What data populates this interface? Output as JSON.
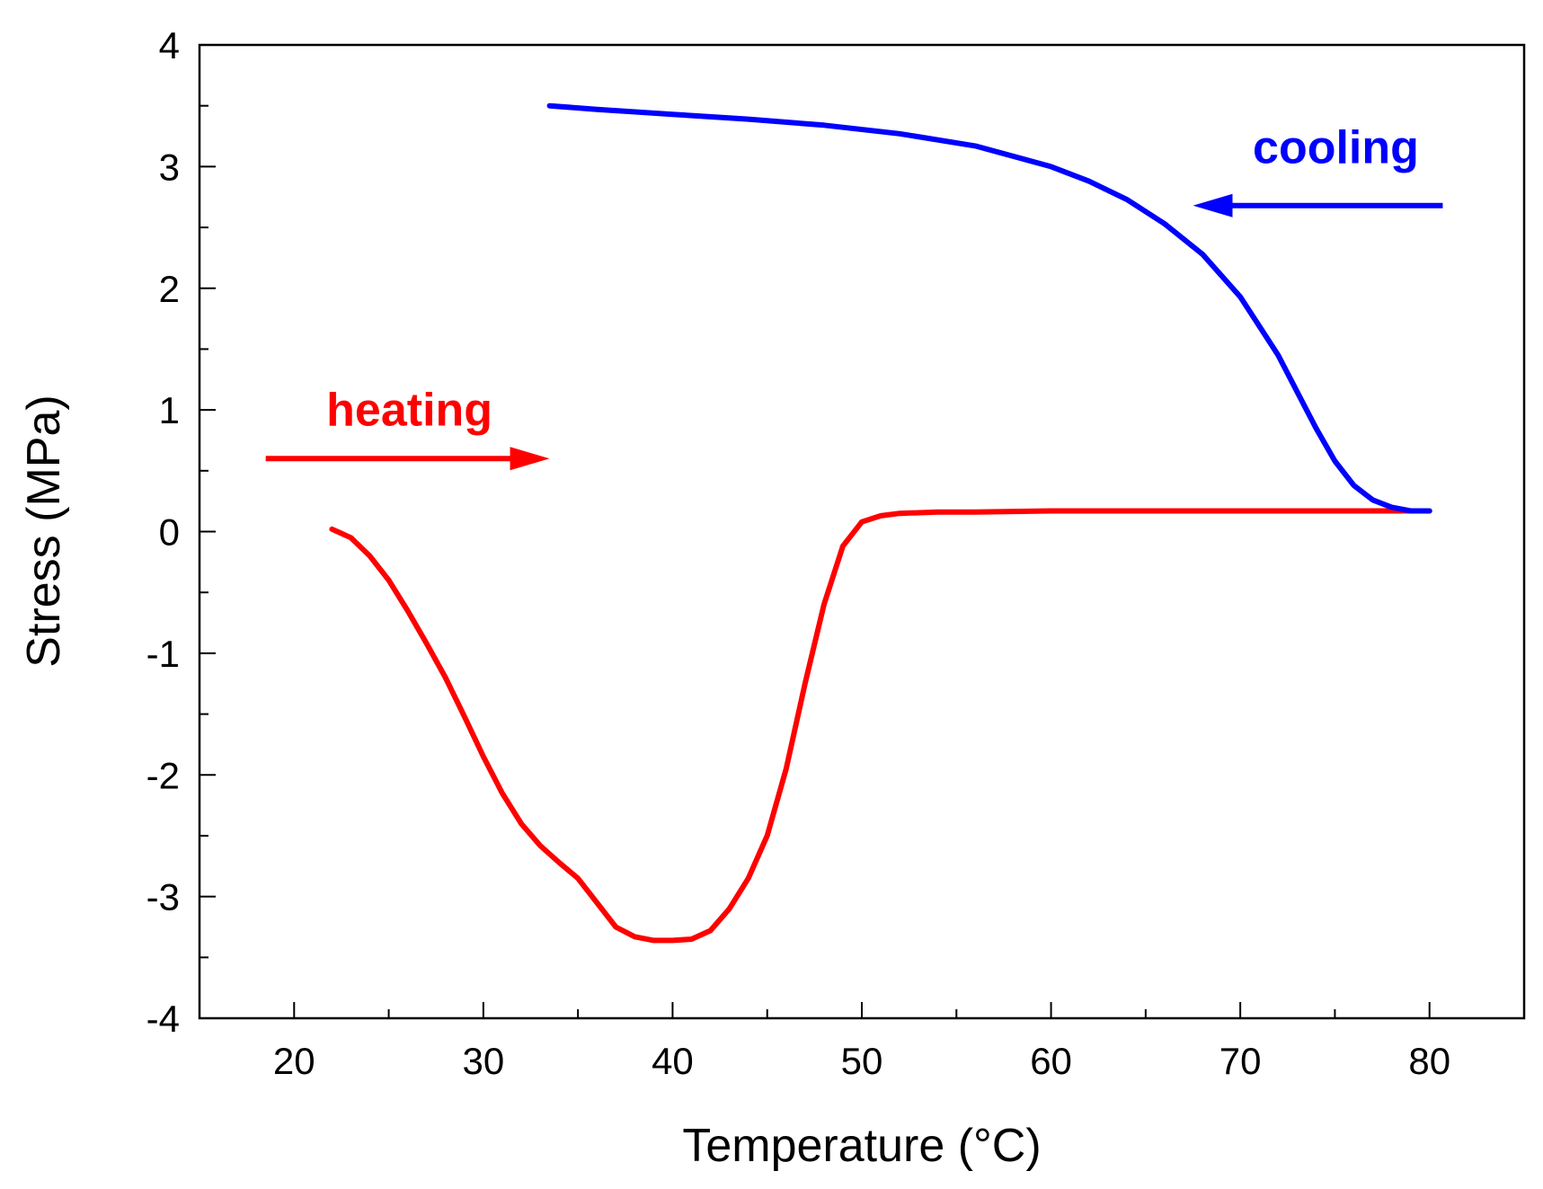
{
  "chart_data": {
    "type": "line",
    "title": "",
    "xlabel": "Temperature (°C)",
    "ylabel": "Stress (MPa)",
    "xlim": [
      15,
      85
    ],
    "ylim": [
      -4,
      4
    ],
    "x_ticks": [
      20,
      30,
      40,
      50,
      60,
      70,
      80
    ],
    "y_ticks": [
      -4,
      -3,
      -2,
      -1,
      0,
      1,
      2,
      3,
      4
    ],
    "grid": false,
    "series": [
      {
        "name": "heating",
        "color": "#ff0000",
        "x": [
          22.0,
          23.0,
          24.0,
          25.0,
          26.0,
          27.0,
          28.0,
          29.0,
          30.0,
          31.0,
          32.0,
          33.0,
          34.0,
          35.0,
          36.0,
          37.0,
          38.0,
          39.0,
          40.0,
          41.0,
          42.0,
          43.0,
          44.0,
          45.0,
          46.0,
          47.0,
          48.0,
          49.0,
          50.0,
          51.0,
          52.0,
          54.0,
          56.0,
          60.0,
          64.0,
          68.0,
          72.0,
          76.0,
          80.0
        ],
        "y": [
          0.02,
          -0.05,
          -0.2,
          -0.4,
          -0.65,
          -0.92,
          -1.2,
          -1.52,
          -1.85,
          -2.15,
          -2.4,
          -2.58,
          -2.72,
          -2.85,
          -3.05,
          -3.25,
          -3.33,
          -3.36,
          -3.36,
          -3.35,
          -3.28,
          -3.1,
          -2.85,
          -2.5,
          -1.95,
          -1.25,
          -0.6,
          -0.12,
          0.08,
          0.13,
          0.15,
          0.16,
          0.16,
          0.17,
          0.17,
          0.17,
          0.17,
          0.17,
          0.17
        ]
      },
      {
        "name": "cooling",
        "color": "#0000ff",
        "x": [
          33.5,
          36.0,
          40.0,
          44.0,
          48.0,
          52.0,
          56.0,
          60.0,
          62.0,
          64.0,
          66.0,
          68.0,
          70.0,
          72.0,
          73.0,
          74.0,
          75.0,
          76.0,
          77.0,
          78.0,
          79.0,
          80.0
        ],
        "y": [
          3.5,
          3.47,
          3.43,
          3.39,
          3.34,
          3.27,
          3.17,
          3.0,
          2.88,
          2.73,
          2.53,
          2.28,
          1.93,
          1.45,
          1.15,
          0.85,
          0.58,
          0.38,
          0.26,
          0.2,
          0.17,
          0.17
        ]
      }
    ],
    "annotations": [
      {
        "text": "heating",
        "color": "#ff0000",
        "arrow_direction": "right",
        "arrow_x_from": 18.5,
        "arrow_x_to": 33.5,
        "arrow_y": 0.6
      },
      {
        "text": "cooling",
        "color": "#0000ff",
        "arrow_direction": "left",
        "arrow_x_from": 80.7,
        "arrow_x_to": 67.5,
        "arrow_y": 2.68
      }
    ]
  }
}
